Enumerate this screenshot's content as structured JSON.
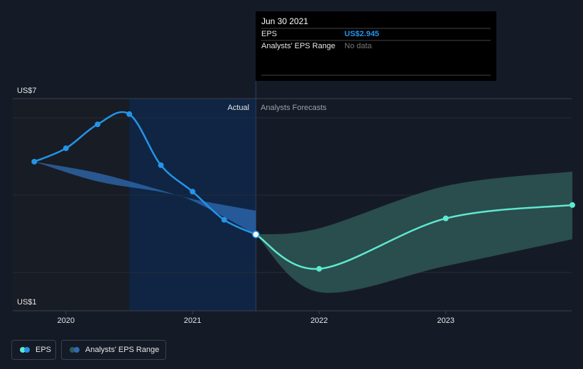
{
  "chart_data": {
    "type": "line",
    "xlim": [
      2019.58,
      2024.0
    ],
    "xticks": [
      2020,
      2021,
      2022,
      2023
    ],
    "ylim": [
      1,
      7
    ],
    "yticks": [
      {
        "value": 7,
        "label": "US$7"
      },
      {
        "value": 1,
        "label": "US$1"
      }
    ],
    "divider_x": 2021.5,
    "highlight_start": 2020.5,
    "actual_label": "Actual",
    "forecast_label": "Analysts Forecasts",
    "eps": {
      "x": [
        2019.75,
        2020.0,
        2020.25,
        2020.5,
        2020.75,
        2021.0,
        2021.25,
        2021.5,
        2022.0,
        2023.0,
        2024.0
      ],
      "values": [
        5.01,
        5.39,
        6.07,
        6.36,
        4.91,
        4.16,
        3.36,
        2.945,
        1.97,
        3.4,
        3.78
      ],
      "color": "#2394e8",
      "forecast_color": "#5ee8d0"
    },
    "range_past": {
      "x": [
        2019.75,
        2020.25,
        2020.75,
        2021.0,
        2021.5
      ],
      "upper": [
        5.01,
        4.69,
        4.2,
        3.95,
        3.62
      ],
      "lower": [
        5.01,
        4.45,
        4.15,
        3.9,
        2.945
      ],
      "color": "#2f6bb3"
    },
    "range_forecast": {
      "x": [
        2021.5,
        2022.0,
        2023.0,
        2024.0
      ],
      "upper": [
        2.945,
        3.12,
        4.32,
        4.73
      ],
      "lower": [
        2.945,
        1.31,
        2.05,
        2.81
      ],
      "color": "#2f5a57"
    },
    "tooltip": {
      "date": "Jun 30 2021",
      "eps_label": "EPS",
      "eps_value": "US$2.945",
      "range_label": "Analysts' EPS Range",
      "range_value": "No data"
    },
    "legend": [
      "EPS",
      "Analysts' EPS Range"
    ]
  }
}
